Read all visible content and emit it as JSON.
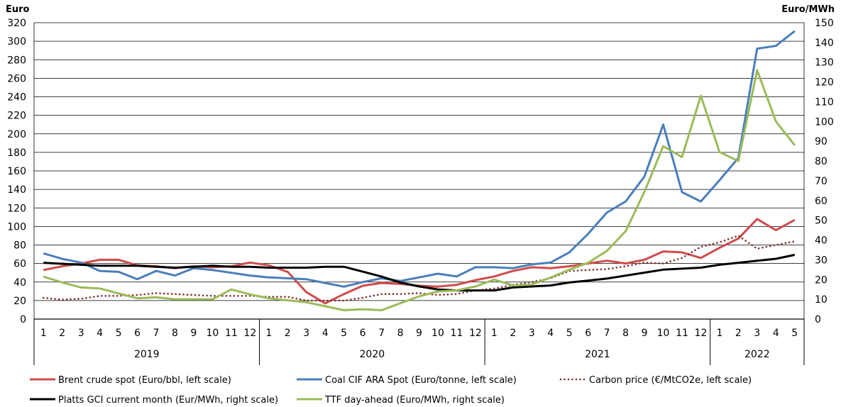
{
  "chart_data": {
    "type": "line",
    "left_axis_label": "Euro",
    "right_axis_label": "Euro/MWh",
    "left_ylim": [
      0,
      320
    ],
    "left_ticks": [
      0,
      20,
      40,
      60,
      80,
      100,
      120,
      140,
      160,
      180,
      200,
      220,
      240,
      260,
      280,
      300,
      320
    ],
    "right_ylim": [
      0,
      150
    ],
    "right_ticks": [
      0,
      10,
      20,
      30,
      40,
      50,
      60,
      70,
      80,
      90,
      100,
      110,
      120,
      130,
      140,
      150
    ],
    "grid": true,
    "legend_placement": "bottom",
    "x": [
      "1",
      "2",
      "3",
      "4",
      "5",
      "6",
      "7",
      "8",
      "9",
      "10",
      "11",
      "12",
      "1",
      "2",
      "3",
      "4",
      "5",
      "6",
      "7",
      "8",
      "9",
      "10",
      "11",
      "12",
      "1",
      "2",
      "3",
      "4",
      "5",
      "6",
      "7",
      "8",
      "9",
      "10",
      "11",
      "12",
      "1",
      "2",
      "3",
      "4",
      "5"
    ],
    "years": [
      {
        "label": "2019",
        "months": 12
      },
      {
        "label": "2020",
        "months": 12
      },
      {
        "label": "2021",
        "months": 12
      },
      {
        "label": "2022",
        "months": 5
      }
    ],
    "series": [
      {
        "name": "Brent crude spot (Euro/bbl, left scale)",
        "axis": "left",
        "color": "#d04b4b",
        "style": "solid",
        "values": [
          53,
          57,
          60,
          64,
          64,
          58,
          57,
          55,
          57,
          56,
          57,
          61,
          58,
          51,
          29,
          17,
          27,
          36,
          39,
          38,
          36,
          35,
          37,
          42,
          46,
          52,
          56,
          55,
          57,
          60,
          63,
          60,
          64,
          73,
          72,
          66,
          77,
          87,
          108,
          96,
          107
        ]
      },
      {
        "name": "Coal CIF ARA Spot (Euro/tonne, left scale)",
        "axis": "left",
        "color": "#4a7ebb",
        "style": "solid",
        "values": [
          71,
          65,
          61,
          52,
          51,
          43,
          52,
          47,
          55,
          53,
          50,
          47,
          45,
          44,
          43,
          39,
          35,
          40,
          44,
          41,
          45,
          49,
          46,
          56,
          56,
          55,
          59,
          61,
          72,
          92,
          115,
          127,
          154,
          210,
          137,
          127,
          150,
          174,
          292,
          295,
          311
        ]
      },
      {
        "name": "Carbon price (€/MtCO2e, left scale)",
        "axis": "left",
        "color": "#7f2c2c",
        "style": "dotted",
        "values": [
          23,
          21,
          22,
          25,
          25,
          26,
          28,
          27,
          26,
          25,
          25,
          25,
          24,
          24,
          20,
          20,
          20,
          23,
          27,
          27,
          28,
          26,
          27,
          31,
          33,
          37,
          40,
          44,
          52,
          53,
          54,
          57,
          61,
          60,
          66,
          78,
          83,
          90,
          76,
          80,
          84
        ]
      },
      {
        "name": "Platts GCI current month (Eur/MWh, right scale)",
        "axis": "right",
        "color": "#000000",
        "style": "solid",
        "values": [
          28.5,
          28,
          27.5,
          27,
          27,
          27,
          26.5,
          26,
          26.5,
          27,
          26.5,
          26.5,
          26,
          26,
          26,
          26.5,
          26.5,
          24,
          21.5,
          18.5,
          16.5,
          15,
          14.5,
          14.5,
          14.5,
          16,
          16.5,
          17,
          18.5,
          19.5,
          20.5,
          22,
          23.5,
          25,
          25.5,
          26,
          27.5,
          28.5,
          29.5,
          30.5,
          32.5
        ]
      },
      {
        "name": "TTF day-ahead (Euro/MWh, right scale)",
        "axis": "right",
        "color": "#9bbb59",
        "style": "solid",
        "values": [
          21.5,
          18.5,
          16,
          15.5,
          13,
          10.5,
          11,
          10,
          10,
          10,
          15,
          12.5,
          10.5,
          9.5,
          8.5,
          6.5,
          4.5,
          5,
          4.5,
          8,
          11.5,
          14,
          14.5,
          16.5,
          20,
          17,
          17.5,
          21,
          25,
          28.5,
          34.5,
          44.5,
          64.5,
          87.5,
          82,
          113,
          84.5,
          80,
          126,
          100,
          88
        ]
      }
    ]
  }
}
